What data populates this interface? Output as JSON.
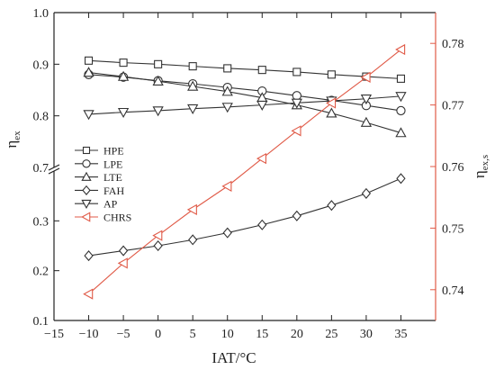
{
  "chart_data": {
    "type": "line",
    "xlabel": "IAT/°C",
    "ylabel_left_main": "η",
    "ylabel_left_sub": "ex",
    "ylabel_right_main": "η",
    "ylabel_right_sub": "ex,s",
    "x_ticks": [
      -15,
      -10,
      -5,
      0,
      5,
      10,
      15,
      20,
      25,
      30,
      35
    ],
    "x_tick_labels": [
      "−15",
      "−10",
      "−5",
      "0",
      "5",
      "10",
      "15",
      "20",
      "25",
      "30",
      "35"
    ],
    "xlim": [
      -15,
      40
    ],
    "left_axis_break": true,
    "left_upper_ylim": [
      0.7,
      1.0
    ],
    "left_upper_ticks": [
      0.8,
      0.9,
      1.0
    ],
    "left_upper_tick_labels": [
      "0.8",
      "0.9",
      "1.0"
    ],
    "left_lower_ylim": [
      0.1,
      0.4
    ],
    "left_lower_ticks": [
      0.1,
      0.2,
      0.3
    ],
    "left_lower_tick_labels": [
      "0.1",
      "0.2",
      "0.3"
    ],
    "left_break_label": "0.7",
    "right_ylim": [
      0.735,
      0.785
    ],
    "right_ticks": [
      0.74,
      0.75,
      0.76,
      0.77,
      0.78
    ],
    "right_tick_labels": [
      "0.74",
      "0.75",
      "0.76",
      "0.77",
      "0.78"
    ],
    "right_axis_color": "#e05a47",
    "legend_position": "left-middle",
    "x": [
      -10,
      -5,
      0,
      5,
      10,
      15,
      20,
      25,
      30,
      35
    ],
    "series": [
      {
        "name": "HPE",
        "marker": "square",
        "axis": "left",
        "color": "#333333",
        "values": [
          0.907,
          0.903,
          0.9,
          0.896,
          0.892,
          0.889,
          0.885,
          0.88,
          0.876,
          0.872
        ]
      },
      {
        "name": "LPE",
        "marker": "circle",
        "axis": "left",
        "color": "#333333",
        "values": [
          0.88,
          0.875,
          0.868,
          0.862,
          0.855,
          0.848,
          0.839,
          0.83,
          0.82,
          0.81
        ]
      },
      {
        "name": "LTE",
        "marker": "triangle-up",
        "axis": "left",
        "color": "#333333",
        "values": [
          0.884,
          0.876,
          0.867,
          0.857,
          0.847,
          0.835,
          0.821,
          0.805,
          0.787,
          0.767
        ]
      },
      {
        "name": "FAH",
        "marker": "diamond",
        "axis": "left",
        "color": "#333333",
        "values": [
          0.23,
          0.24,
          0.25,
          0.262,
          0.276,
          0.292,
          0.31,
          0.331,
          0.355,
          0.385
        ]
      },
      {
        "name": "AP",
        "marker": "triangle-down",
        "axis": "left",
        "color": "#333333",
        "values": [
          0.803,
          0.807,
          0.81,
          0.814,
          0.817,
          0.821,
          0.825,
          0.829,
          0.833,
          0.838
        ]
      },
      {
        "name": "CHRS",
        "marker": "triangle-left",
        "axis": "right",
        "color": "#e05a47",
        "values": [
          0.7393,
          0.7443,
          0.7488,
          0.753,
          0.7568,
          0.7613,
          0.7658,
          0.7703,
          0.7745,
          0.779
        ]
      }
    ]
  }
}
